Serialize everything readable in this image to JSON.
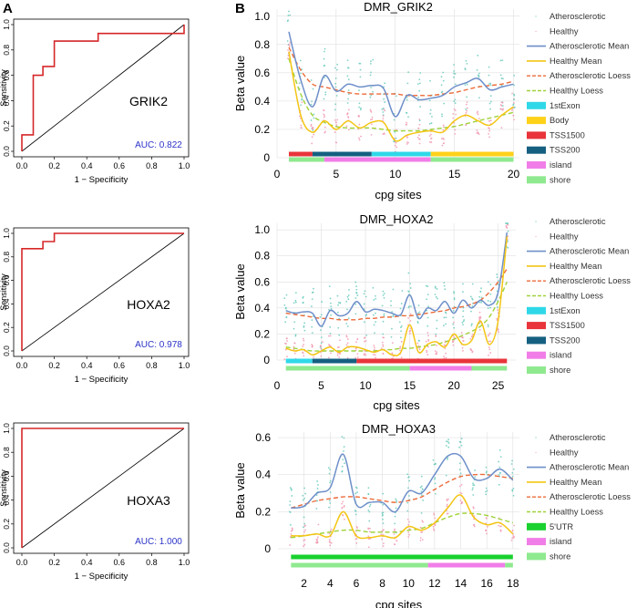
{
  "panel_labels": [
    "A",
    "B"
  ],
  "legend_labels": {
    "atherosclerotic": "Atherosclerotic",
    "healthy": "Healthy",
    "ath_mean": "Atherosclerotic Mean",
    "healthy_mean": "Healthy Mean",
    "ath_loess": "Atherosclerotic Loess",
    "healthy_loess": "Healthy Loess"
  },
  "colors": {
    "atherosclerotic": "#5fc7b8",
    "healthy": "#f29ab2",
    "ath_mean": "#6e8fc9",
    "healthy_mean": "#f3c514",
    "ath_loess": "#ec6b3a",
    "healthy_loess": "#9fd23a",
    "roc": "#d62728",
    "auc_text": "#2b33c8"
  },
  "chart_data": [
    {
      "type": "line",
      "id": "roc_grik2",
      "gene": "GRIK2",
      "auc_text": "AUC: 0.822",
      "xlabel": "1 − Specificity",
      "ylabel": "Sensitivity",
      "xlim": [
        0,
        1
      ],
      "ylim": [
        0,
        1
      ],
      "ticks": [
        "0.0",
        "0.2",
        "0.4",
        "0.6",
        "0.8",
        "1.0"
      ],
      "curve": [
        [
          0,
          0
        ],
        [
          0,
          0.07
        ],
        [
          0,
          0.13
        ],
        [
          0.07,
          0.13
        ],
        [
          0.07,
          0.6
        ],
        [
          0.13,
          0.6
        ],
        [
          0.13,
          0.67
        ],
        [
          0.2,
          0.67
        ],
        [
          0.2,
          0.87
        ],
        [
          0.47,
          0.87
        ],
        [
          0.47,
          0.93
        ],
        [
          1,
          0.93
        ],
        [
          1,
          1
        ]
      ]
    },
    {
      "type": "line",
      "id": "roc_hoxa2",
      "gene": "HOXA2",
      "auc_text": "AUC: 0.978",
      "xlabel": "1 − Specificity",
      "ylabel": "Sensitivity",
      "xlim": [
        0,
        1
      ],
      "ylim": [
        0,
        1
      ],
      "ticks": [
        "0.0",
        "0.2",
        "0.4",
        "0.6",
        "0.8",
        "1.0"
      ],
      "curve": [
        [
          0,
          0
        ],
        [
          0,
          0.87
        ],
        [
          0.13,
          0.87
        ],
        [
          0.13,
          0.93
        ],
        [
          0.2,
          0.93
        ],
        [
          0.2,
          1
        ],
        [
          1,
          1
        ]
      ]
    },
    {
      "type": "line",
      "id": "roc_hoxa3",
      "gene": "HOXA3",
      "auc_text": "AUC: 1.000",
      "xlabel": "1 − Specificity",
      "ylabel": "Sensitivity",
      "xlim": [
        0,
        1
      ],
      "ylim": [
        0,
        1
      ],
      "ticks": [
        "0.0",
        "0.2",
        "0.4",
        "0.6",
        "0.8",
        "1.0"
      ],
      "curve": [
        [
          0,
          0
        ],
        [
          0,
          1
        ],
        [
          1,
          1
        ]
      ]
    },
    {
      "type": "scatter",
      "id": "dmr_grik2",
      "title": "DMR_GRIK2",
      "xlabel": "cpg sites",
      "ylabel": "Beta value",
      "n_sites": 20,
      "xlim": [
        0,
        20.5
      ],
      "ylim": [
        0,
        1.05
      ],
      "xticks": [
        0,
        5,
        10,
        15,
        20
      ],
      "yticks": [
        0,
        0.2,
        0.4,
        0.6,
        0.8,
        1.0
      ],
      "ytick_labels": [
        "0",
        "0.2",
        "0.4",
        "0.6",
        "0.8",
        "1.0"
      ],
      "ath_mean": [
        0.89,
        0.55,
        0.36,
        0.58,
        0.47,
        0.52,
        0.5,
        0.51,
        0.49,
        0.29,
        0.44,
        0.41,
        0.42,
        0.44,
        0.5,
        0.53,
        0.56,
        0.48,
        0.5,
        0.52
      ],
      "healthy_mean": [
        0.75,
        0.3,
        0.18,
        0.26,
        0.2,
        0.26,
        0.21,
        0.25,
        0.25,
        0.12,
        0.16,
        0.18,
        0.19,
        0.18,
        0.26,
        0.3,
        0.26,
        0.23,
        0.3,
        0.36
      ],
      "ath_loess": [
        0.78,
        0.62,
        0.52,
        0.5,
        0.48,
        0.46,
        0.45,
        0.45,
        0.45,
        0.45,
        0.44,
        0.44,
        0.44,
        0.45,
        0.46,
        0.48,
        0.5,
        0.51,
        0.52,
        0.54
      ],
      "healthy_loess": [
        0.7,
        0.45,
        0.3,
        0.25,
        0.22,
        0.21,
        0.21,
        0.21,
        0.2,
        0.19,
        0.19,
        0.19,
        0.2,
        0.21,
        0.22,
        0.24,
        0.26,
        0.28,
        0.3,
        0.32
      ],
      "annotation_tracks": [
        [
          {
            "label": "TSS1500",
            "from": 1,
            "to": 3
          },
          {
            "label": "TSS200",
            "from": 3,
            "to": 8
          },
          {
            "label": "1stExon",
            "from": 8,
            "to": 13
          },
          {
            "label": "Body",
            "from": 13,
            "to": 20
          }
        ],
        [
          {
            "label": "shore",
            "from": 1,
            "to": 4
          },
          {
            "label": "island",
            "from": 4,
            "to": 13
          },
          {
            "label": "shore",
            "from": 13,
            "to": 20
          }
        ]
      ],
      "legend_regions": [
        "1stExon",
        "Body",
        "TSS1500",
        "TSS200",
        "island",
        "shore"
      ]
    },
    {
      "type": "scatter",
      "id": "dmr_hoxa2",
      "title": "DMR_HOXA2",
      "xlabel": "cpg sites",
      "ylabel": "Beta value",
      "n_sites": 26,
      "xlim": [
        0,
        27
      ],
      "ylim": [
        0,
        1.05
      ],
      "xticks": [
        0,
        5,
        10,
        15,
        20,
        25
      ],
      "yticks": [
        0,
        0.2,
        0.4,
        0.6,
        0.8,
        1.0
      ],
      "ytick_labels": [
        "0",
        "0.2",
        "0.4",
        "0.6",
        "0.8",
        "1.0"
      ],
      "ath_mean": [
        0.38,
        0.36,
        0.37,
        0.36,
        0.26,
        0.38,
        0.34,
        0.36,
        0.45,
        0.37,
        0.39,
        0.38,
        0.36,
        0.35,
        0.5,
        0.32,
        0.4,
        0.38,
        0.45,
        0.36,
        0.46,
        0.4,
        0.46,
        0.42,
        0.52,
        0.98
      ],
      "healthy_mean": [
        0.09,
        0.07,
        0.08,
        0.04,
        0.07,
        0.1,
        0.06,
        0.1,
        0.1,
        0.08,
        0.06,
        0.08,
        0.04,
        0.06,
        0.27,
        0.06,
        0.12,
        0.14,
        0.1,
        0.2,
        0.12,
        0.15,
        0.3,
        0.12,
        0.3,
        0.95
      ],
      "ath_loess": [
        0.36,
        0.35,
        0.34,
        0.33,
        0.32,
        0.32,
        0.31,
        0.31,
        0.31,
        0.32,
        0.32,
        0.33,
        0.33,
        0.34,
        0.34,
        0.35,
        0.36,
        0.37,
        0.38,
        0.4,
        0.41,
        0.43,
        0.46,
        0.52,
        0.6,
        0.7
      ],
      "healthy_loess": [
        0.1,
        0.09,
        0.08,
        0.07,
        0.07,
        0.07,
        0.07,
        0.07,
        0.07,
        0.07,
        0.07,
        0.08,
        0.08,
        0.09,
        0.09,
        0.1,
        0.11,
        0.12,
        0.14,
        0.16,
        0.19,
        0.22,
        0.26,
        0.33,
        0.45,
        0.6
      ],
      "annotation_tracks": [
        [
          {
            "label": "1stExon",
            "from": 1,
            "to": 4
          },
          {
            "label": "TSS200",
            "from": 4,
            "to": 9
          },
          {
            "label": "TSS1500",
            "from": 9,
            "to": 26
          }
        ],
        [
          {
            "label": "shore",
            "from": 1,
            "to": 15
          },
          {
            "label": "island",
            "from": 15,
            "to": 22
          },
          {
            "label": "shore",
            "from": 22,
            "to": 26
          }
        ]
      ],
      "legend_regions": [
        "1stExon",
        "TSS1500",
        "TSS200",
        "island",
        "shore"
      ]
    },
    {
      "type": "scatter",
      "id": "dmr_hoxa3",
      "title": "DMR_HOXA3",
      "xlabel": "cpg sites",
      "ylabel": "Beta value",
      "n_sites": 18,
      "xlim": [
        0,
        18.5
      ],
      "ylim": [
        0,
        0.63
      ],
      "xticks": [
        2,
        4,
        6,
        8,
        10,
        12,
        14,
        16,
        18
      ],
      "yticks": [
        0,
        0.2,
        0.4,
        0.6
      ],
      "ytick_labels": [
        "0",
        "0.2",
        "0.4",
        "0.6"
      ],
      "ath_mean": [
        0.22,
        0.23,
        0.3,
        0.33,
        0.51,
        0.24,
        0.25,
        0.25,
        0.2,
        0.31,
        0.3,
        0.4,
        0.5,
        0.5,
        0.38,
        0.38,
        0.43,
        0.37
      ],
      "healthy_mean": [
        0.07,
        0.07,
        0.08,
        0.07,
        0.2,
        0.07,
        0.06,
        0.07,
        0.06,
        0.12,
        0.1,
        0.14,
        0.22,
        0.29,
        0.17,
        0.13,
        0.14,
        0.08
      ],
      "ath_loess": [
        0.22,
        0.24,
        0.26,
        0.27,
        0.28,
        0.28,
        0.27,
        0.26,
        0.25,
        0.26,
        0.28,
        0.32,
        0.36,
        0.39,
        0.4,
        0.4,
        0.39,
        0.38
      ],
      "healthy_loess": [
        0.06,
        0.07,
        0.08,
        0.09,
        0.1,
        0.1,
        0.09,
        0.09,
        0.09,
        0.1,
        0.11,
        0.14,
        0.17,
        0.19,
        0.19,
        0.18,
        0.16,
        0.14
      ],
      "annotation_tracks": [
        [
          {
            "label": "5'UTR",
            "from": 1,
            "to": 18
          }
        ],
        [
          {
            "label": "shore",
            "from": 1,
            "to": 11.5
          },
          {
            "label": "island",
            "from": 11.5,
            "to": 17.4
          },
          {
            "label": "shore",
            "from": 17.4,
            "to": 18
          }
        ]
      ],
      "legend_regions": [
        "5'UTR",
        "island",
        "shore"
      ]
    }
  ],
  "region_colors": {
    "1stExon": "#2fd8e8",
    "Body": "#ffd21a",
    "TSS1500": "#e8343a",
    "TSS200": "#156081",
    "island": "#f17de8",
    "shore": "#8fe98f",
    "5'UTR": "#19d12f"
  }
}
